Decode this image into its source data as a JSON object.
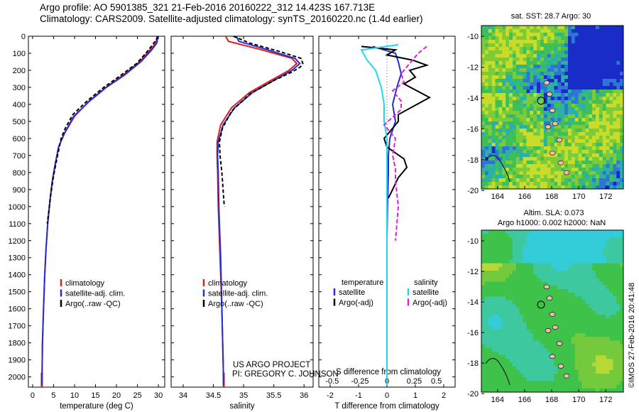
{
  "header": {
    "title_line1": "Argo profile: AO 5901385_321 21-Feb-2016 20160222_312 14.423S 167.713E",
    "title_line2": "Climatology: CARS2009. Satellite-adjusted climatology: synTS_20160220.nc (1.4d earlier)"
  },
  "credits": {
    "project": "US ARGO PROJECT",
    "pi": "PI: GREGORY C. JOHNSON",
    "stamp": "©IMOS 27-Feb-2016 20:41:48"
  },
  "colors": {
    "climatology": "#e0201c",
    "satellite": "#1f2fd8",
    "argo": "#000000",
    "sal_satellite": "#22d8e8",
    "sal_argo": "#e020d8"
  },
  "chart_data": [
    {
      "id": "temperature",
      "type": "line",
      "xlabel": "temperature (deg C)",
      "ylabel": "",
      "xlim": [
        -1,
        31.5
      ],
      "ylim": [
        2060,
        0
      ],
      "xticks": [
        0,
        5,
        10,
        15,
        20,
        25,
        30
      ],
      "yticks": [
        0,
        100,
        200,
        300,
        400,
        500,
        600,
        700,
        800,
        900,
        1000,
        1100,
        1200,
        1300,
        1400,
        1500,
        1600,
        1700,
        1800,
        1900,
        2000
      ],
      "legend": [
        "climatology",
        "satellite-adj. clim.",
        "Argo(..raw -QC)"
      ],
      "legend_position": "bottom-center",
      "series": [
        {
          "name": "climatology",
          "role": "climatology",
          "points": [
            [
              29.7,
              0
            ],
            [
              29.4,
              40
            ],
            [
              28.0,
              80
            ],
            [
              25.5,
              150
            ],
            [
              21.5,
              230
            ],
            [
              17.5,
              300
            ],
            [
              13.5,
              380
            ],
            [
              10.0,
              470
            ],
            [
              7.6,
              570
            ],
            [
              6.2,
              650
            ],
            [
              5.4,
              750
            ],
            [
              4.7,
              850
            ],
            [
              4.2,
              950
            ],
            [
              3.6,
              1100
            ],
            [
              3.2,
              1250
            ],
            [
              2.9,
              1400
            ],
            [
              2.6,
              1600
            ],
            [
              2.35,
              1800
            ],
            [
              2.25,
              2000
            ],
            [
              2.2,
              2050
            ]
          ]
        },
        {
          "name": "satellite-adj. clim.",
          "role": "satellite",
          "points": [
            [
              29.9,
              0
            ],
            [
              29.6,
              40
            ],
            [
              28.4,
              80
            ],
            [
              25.8,
              150
            ],
            [
              21.8,
              230
            ],
            [
              17.6,
              300
            ],
            [
              13.4,
              385
            ],
            [
              9.8,
              470
            ],
            [
              7.6,
              570
            ],
            [
              6.2,
              650
            ],
            [
              5.4,
              750
            ],
            [
              4.7,
              850
            ],
            [
              4.2,
              950
            ],
            [
              3.6,
              1100
            ],
            [
              3.2,
              1250
            ],
            [
              2.9,
              1400
            ],
            [
              2.6,
              1600
            ],
            [
              2.35,
              1800
            ],
            [
              2.25,
              2000
            ],
            [
              2.2,
              2050
            ]
          ]
        },
        {
          "name": "Argo(..raw -QC)",
          "role": "argo",
          "points": [
            [
              29.8,
              0
            ],
            [
              29.5,
              20
            ],
            [
              28.6,
              50
            ],
            [
              27.0,
              100
            ],
            [
              24.8,
              160
            ],
            [
              21.0,
              230
            ],
            [
              17.0,
              300
            ],
            [
              13.0,
              380
            ],
            [
              9.6,
              460
            ],
            [
              7.8,
              540
            ],
            [
              6.8,
              600
            ],
            [
              6.3,
              660
            ],
            [
              5.7,
              730
            ],
            [
              5.0,
              820
            ],
            [
              4.4,
              920
            ],
            [
              4.0,
              1000
            ],
            [
              3.5,
              1100
            ]
          ]
        }
      ]
    },
    {
      "id": "salinity",
      "type": "line",
      "xlabel": "salinity",
      "ylabel": "",
      "xlim": [
        33.8,
        36.15
      ],
      "ylim": [
        2060,
        0
      ],
      "xticks": [
        34,
        34.5,
        35,
        35.5,
        36
      ],
      "legend": [
        "climatology",
        "satellite-adj. clim.",
        "Argo(..raw -QC)"
      ],
      "legend_position": "bottom-center",
      "series": [
        {
          "name": "climatology",
          "role": "climatology",
          "points": [
            [
              34.7,
              0
            ],
            [
              34.75,
              30
            ],
            [
              35.3,
              80
            ],
            [
              35.8,
              130
            ],
            [
              35.88,
              160
            ],
            [
              35.75,
              200
            ],
            [
              35.45,
              260
            ],
            [
              35.1,
              330
            ],
            [
              34.8,
              420
            ],
            [
              34.62,
              520
            ],
            [
              34.56,
              620
            ],
            [
              34.56,
              700
            ],
            [
              34.57,
              800
            ],
            [
              34.58,
              1000
            ],
            [
              34.61,
              1300
            ],
            [
              34.64,
              1600
            ],
            [
              34.66,
              1900
            ],
            [
              34.67,
              2050
            ]
          ]
        },
        {
          "name": "satellite-adj. clim.",
          "role": "satellite",
          "points": [
            [
              34.88,
              0
            ],
            [
              34.92,
              30
            ],
            [
              35.4,
              80
            ],
            [
              35.85,
              130
            ],
            [
              35.93,
              160
            ],
            [
              35.8,
              200
            ],
            [
              35.5,
              260
            ],
            [
              35.15,
              330
            ],
            [
              34.85,
              420
            ],
            [
              34.66,
              520
            ],
            [
              34.58,
              620
            ],
            [
              34.57,
              700
            ],
            [
              34.58,
              800
            ],
            [
              34.59,
              1000
            ],
            [
              34.62,
              1300
            ],
            [
              34.64,
              1600
            ],
            [
              34.66,
              1900
            ],
            [
              34.67,
              2050
            ]
          ]
        },
        {
          "name": "Argo(..raw -QC)",
          "role": "argo",
          "points": [
            [
              34.83,
              0
            ],
            [
              35.1,
              40
            ],
            [
              35.6,
              90
            ],
            [
              35.95,
              130
            ],
            [
              35.98,
              160
            ],
            [
              35.94,
              180
            ],
            [
              35.8,
              210
            ],
            [
              35.5,
              260
            ],
            [
              35.1,
              340
            ],
            [
              34.8,
              440
            ],
            [
              34.65,
              540
            ],
            [
              34.6,
              620
            ],
            [
              34.61,
              700
            ],
            [
              34.64,
              800
            ],
            [
              34.66,
              900
            ],
            [
              34.68,
              1000
            ]
          ]
        }
      ]
    },
    {
      "id": "difference",
      "type": "line",
      "xlabel": "T difference from climatology",
      "xlabel_top": "S difference from climatology",
      "ylabel": "",
      "xlim": [
        -2.4,
        2.4
      ],
      "ylim": [
        2060,
        0
      ],
      "xticks": [
        -2,
        -1,
        0,
        1,
        2
      ],
      "xticks_top": [
        "-0.5",
        "-0.25",
        "0",
        "0.25",
        "0.5"
      ],
      "xticks_top_pos": [
        -1.93,
        -0.95,
        0,
        0.96,
        1.74
      ],
      "legend_headers": [
        "temperature",
        "salinity"
      ],
      "legend": [
        "satellite",
        "Argo(-adj)",
        "satellite",
        "Argo(-adj)"
      ],
      "legend_position": "bottom-center",
      "series": [
        {
          "name": "satellite",
          "role": "T satellite",
          "points": [
            [
              -0.5,
              60
            ],
            [
              0.3,
              100
            ],
            [
              0.4,
              150
            ],
            [
              0.5,
              220
            ],
            [
              0.35,
              300
            ],
            [
              0.2,
              400
            ],
            [
              0.3,
              500
            ],
            [
              0.1,
              600
            ],
            [
              0.05,
              700
            ],
            [
              0.05,
              800
            ],
            [
              0.02,
              1000
            ],
            [
              0.0,
              1200
            ],
            [
              0.0,
              1500
            ],
            [
              0.0,
              1800
            ],
            [
              0.0,
              2000
            ],
            [
              0.0,
              2050
            ]
          ]
        },
        {
          "name": "Argo(-adj)",
          "role": "T argo",
          "points": [
            [
              -0.9,
              60
            ],
            [
              0.3,
              80
            ],
            [
              0.0,
              110
            ],
            [
              0.9,
              140
            ],
            [
              1.4,
              170
            ],
            [
              0.8,
              200
            ],
            [
              1.0,
              240
            ],
            [
              0.6,
              280
            ],
            [
              1.5,
              360
            ],
            [
              0.4,
              460
            ],
            [
              0.4,
              500
            ],
            [
              -0.1,
              600
            ],
            [
              0.0,
              650
            ],
            [
              0.6,
              720
            ],
            [
              0.7,
              770
            ],
            [
              0.4,
              830
            ],
            [
              0.2,
              900
            ],
            [
              0.05,
              950
            ]
          ]
        },
        {
          "name": "satellite",
          "role": "S satellite",
          "points": [
            [
              0.4,
              50
            ],
            [
              -0.9,
              80
            ],
            [
              -0.7,
              140
            ],
            [
              -0.4,
              200
            ],
            [
              -0.2,
              300
            ],
            [
              -0.1,
              400
            ],
            [
              -0.1,
              500
            ],
            [
              0.0,
              600
            ],
            [
              0.0,
              700
            ],
            [
              0.0,
              900
            ],
            [
              0.0,
              1200
            ],
            [
              0.0,
              1600
            ],
            [
              0.0,
              2050
            ]
          ]
        },
        {
          "name": "Argo(-adj)",
          "role": "S argo",
          "points": [
            [
              1.4,
              60
            ],
            [
              1.1,
              100
            ],
            [
              0.9,
              140
            ],
            [
              0.7,
              180
            ],
            [
              0.5,
              220
            ],
            [
              0.6,
              270
            ],
            [
              0.2,
              320
            ],
            [
              0.5,
              380
            ],
            [
              0.5,
              430
            ],
            [
              -0.1,
              520
            ],
            [
              0.3,
              600
            ],
            [
              0.2,
              700
            ],
            [
              0.3,
              780
            ],
            [
              0.3,
              850
            ],
            [
              0.4,
              1000
            ],
            [
              0.3,
              1200
            ]
          ]
        }
      ]
    }
  ],
  "maps": {
    "sst": {
      "title": "sat. SST: 28.7  Argo: 30",
      "xticks": [
        "164",
        "166",
        "168",
        "170",
        "172"
      ],
      "yticks": [
        "-10",
        "-12",
        "-14",
        "-16",
        "-18",
        "-20"
      ]
    },
    "sla": {
      "title_line1": "Altim. SLA: 0.073",
      "title_line2": "Argo h1000: 0.002 h2000: NaN",
      "xticks": [
        "164",
        "166",
        "168",
        "170",
        "172"
      ],
      "yticks": [
        "-10",
        "-12",
        "-14",
        "-16",
        "-18",
        "-20"
      ]
    }
  }
}
